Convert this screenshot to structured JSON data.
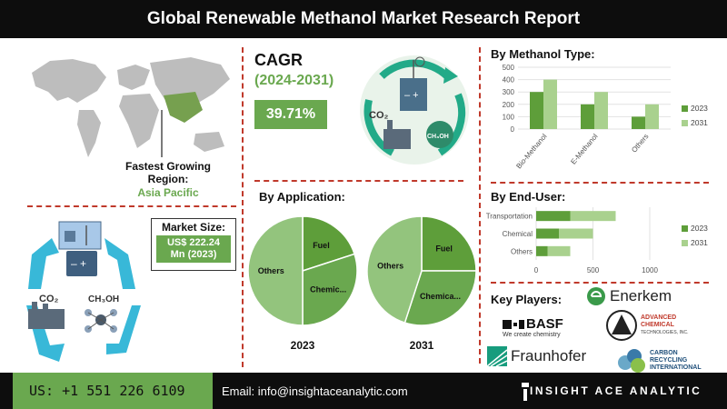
{
  "header": {
    "title": "Global Renewable Methanol Market Research Report"
  },
  "region": {
    "label": "Fastest Growing Region:",
    "value": "Asia Pacific"
  },
  "cagr": {
    "title": "CAGR",
    "period": "(2024-2031)",
    "value": "39.71%"
  },
  "market_size": {
    "label": "Market Size:",
    "line1": "US$ 222.24",
    "line2": "Mn (2023)"
  },
  "icons": {
    "co2": "CO₂",
    "methanol": "CH₃OH",
    "methanol_flask": "CH₃OH"
  },
  "colors": {
    "dark_green": "#5e9e3a",
    "light_green": "#a9d18e",
    "accent": "#6aa84f",
    "divider": "#c0392b"
  },
  "chart_data": [
    {
      "type": "bar",
      "title": "By Methanol Type:",
      "categories": [
        "Bio-Methanol",
        "E-Methanol",
        "Others"
      ],
      "series": [
        {
          "name": "2023",
          "values": [
            300,
            200,
            100
          ],
          "color": "#5e9e3a"
        },
        {
          "name": "2031",
          "values": [
            400,
            300,
            200
          ],
          "color": "#a9d18e"
        }
      ],
      "yticks": [
        0,
        100,
        200,
        300,
        400,
        500
      ],
      "ylim": [
        0,
        500
      ],
      "legend": "right"
    },
    {
      "type": "pie",
      "title": "By Application:",
      "pies": [
        {
          "label": "2023",
          "slices": [
            {
              "name": "Fuel",
              "value": 20,
              "color": "#5e9e3a"
            },
            {
              "name": "Chemic...",
              "value": 30,
              "color": "#6aa84f"
            },
            {
              "name": "Others",
              "value": 50,
              "color": "#93c47d"
            }
          ]
        },
        {
          "label": "2031",
          "slices": [
            {
              "name": "Fuel",
              "value": 25,
              "color": "#5e9e3a"
            },
            {
              "name": "Chemica...",
              "value": 30,
              "color": "#6aa84f"
            },
            {
              "name": "Others",
              "value": 45,
              "color": "#93c47d"
            }
          ]
        }
      ]
    },
    {
      "type": "bar",
      "orientation": "horizontal",
      "stacked": true,
      "title": "By End-User:",
      "categories": [
        "Transportation",
        "Chemical",
        "Others"
      ],
      "series": [
        {
          "name": "2023",
          "values": [
            300,
            200,
            100
          ],
          "color": "#5e9e3a"
        },
        {
          "name": "2031",
          "values": [
            400,
            300,
            200
          ],
          "color": "#a9d18e"
        }
      ],
      "xticks": [
        0,
        500,
        1000
      ],
      "xlim": [
        0,
        1000
      ],
      "legend": "right"
    }
  ],
  "key_players": {
    "title": "Key Players:",
    "enerkem": "Enerkem",
    "basf": "BASF",
    "basf_tagline": "We create chemistry",
    "fraunhofer": "Fraunhofer",
    "advanced_lines": [
      "ADVANCED",
      "CHEMICAL",
      "TECHNOLOGIES, INC."
    ],
    "carbon_lines": [
      "CARBON",
      "RECYCLING",
      "INTERNATIONAL"
    ]
  },
  "footer": {
    "phone": "US: +1 551 226 6109",
    "email": "Email: info@insightaceanalytic.com",
    "brand": "INSIGHT ACE ANALYTIC"
  }
}
